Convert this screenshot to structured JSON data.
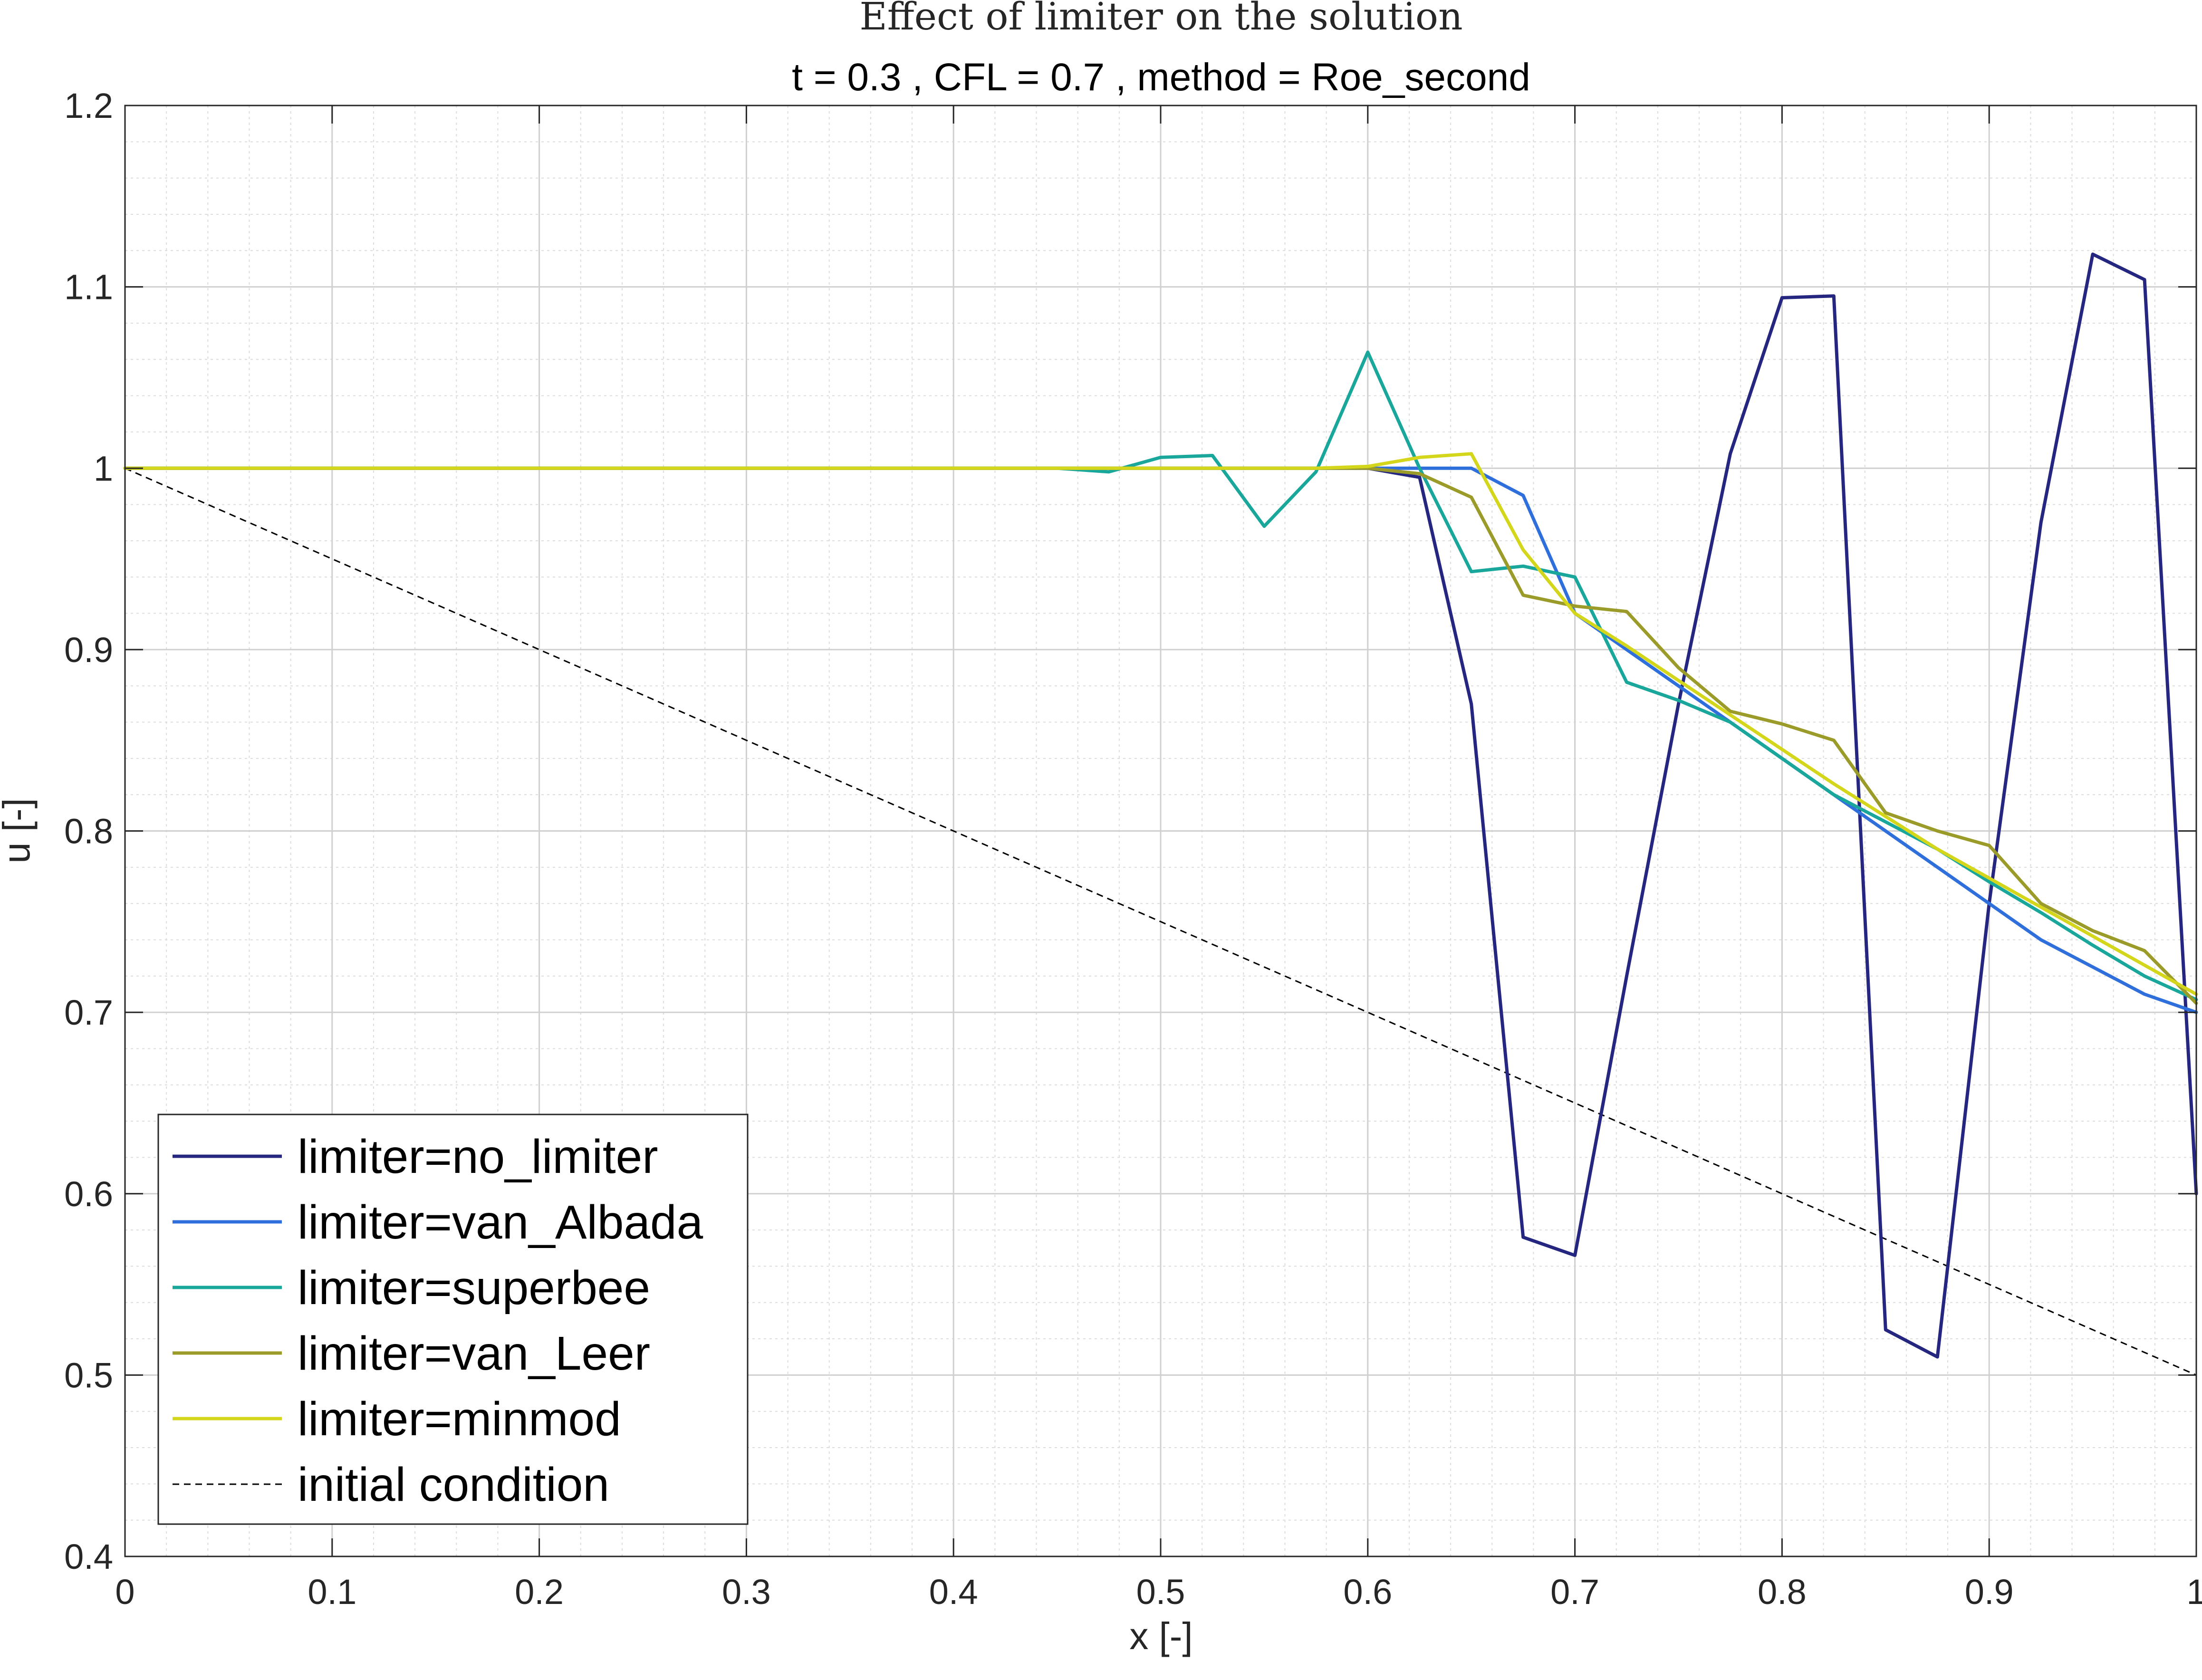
{
  "chart_data": {
    "type": "line",
    "title": "Effect of limiter on the solution",
    "subtitle": "t = 0.3 , CFL = 0.7 , method = Roe_second",
    "xlabel": "x [-]",
    "ylabel": "u [-]",
    "xlim": [
      0,
      1
    ],
    "ylim": [
      0.4,
      1.2
    ],
    "xticks": [
      "0",
      "0.1",
      "0.2",
      "0.3",
      "0.4",
      "0.5",
      "0.6",
      "0.7",
      "0.8",
      "0.9",
      "1"
    ],
    "yticks": [
      "0.4",
      "0.5",
      "0.6",
      "0.7",
      "0.8",
      "0.9",
      "1",
      "1.1",
      "1.2"
    ],
    "grid": true,
    "minor_grid": true,
    "legend_position": "bottom-left",
    "x": [
      0,
      0.025,
      0.05,
      0.075,
      0.1,
      0.125,
      0.15,
      0.175,
      0.2,
      0.225,
      0.25,
      0.275,
      0.3,
      0.325,
      0.35,
      0.375,
      0.4,
      0.425,
      0.45,
      0.475,
      0.5,
      0.525,
      0.55,
      0.575,
      0.6,
      0.625,
      0.65,
      0.675,
      0.7,
      0.725,
      0.75,
      0.775,
      0.8,
      0.825,
      0.85,
      0.875,
      0.9,
      0.925,
      0.95,
      0.975,
      1
    ],
    "series": [
      {
        "name": "limiter=no_limiter",
        "color": "#25267f",
        "dashed": false,
        "values": [
          1,
          1,
          1,
          1,
          1,
          1,
          1,
          1,
          1,
          1,
          1,
          1,
          1,
          1,
          1,
          1,
          1,
          1,
          1,
          1,
          1,
          1,
          1,
          1,
          1,
          0.995,
          0.87,
          0.576,
          0.566,
          0.72,
          0.87,
          1.008,
          1.094,
          1.095,
          0.525,
          0.51,
          0.76,
          0.97,
          1.118,
          1.104,
          0.6
        ]
      },
      {
        "name": "limiter=van_Albada",
        "color": "#2f6fdc",
        "dashed": false,
        "values": [
          1,
          1,
          1,
          1,
          1,
          1,
          1,
          1,
          1,
          1,
          1,
          1,
          1,
          1,
          1,
          1,
          1,
          1,
          1,
          1,
          1,
          1,
          1,
          1,
          1,
          1,
          1,
          0.985,
          0.92,
          0.9,
          0.88,
          0.86,
          0.84,
          0.82,
          0.8,
          0.78,
          0.76,
          0.74,
          0.725,
          0.71,
          0.7
        ]
      },
      {
        "name": "limiter=superbee",
        "color": "#1aa79b",
        "dashed": false,
        "values": [
          1,
          1,
          1,
          1,
          1,
          1,
          1,
          1,
          1,
          1,
          1,
          1,
          1,
          1,
          1,
          1,
          1,
          1,
          1,
          0.998,
          1.006,
          1.007,
          0.968,
          0.998,
          1.064,
          1,
          0.943,
          0.946,
          0.94,
          0.882,
          0.872,
          0.86,
          0.84,
          0.82,
          0.805,
          0.79,
          0.772,
          0.755,
          0.737,
          0.72,
          0.707
        ]
      },
      {
        "name": "limiter=van_Leer",
        "color": "#9b9b2a",
        "dashed": false,
        "values": [
          1,
          1,
          1,
          1,
          1,
          1,
          1,
          1,
          1,
          1,
          1,
          1,
          1,
          1,
          1,
          1,
          1,
          1,
          1,
          1,
          1,
          1,
          1,
          1,
          1,
          0.997,
          0.984,
          0.93,
          0.924,
          0.921,
          0.89,
          0.866,
          0.859,
          0.85,
          0.81,
          0.8,
          0.792,
          0.76,
          0.745,
          0.734,
          0.705
        ]
      },
      {
        "name": "limiter=minmod",
        "color": "#d4d61c",
        "dashed": false,
        "values": [
          1,
          1,
          1,
          1,
          1,
          1,
          1,
          1,
          1,
          1,
          1,
          1,
          1,
          1,
          1,
          1,
          1,
          1,
          1,
          1,
          1,
          1,
          1,
          1,
          1.001,
          1.006,
          1.008,
          0.955,
          0.92,
          0.902,
          0.883,
          0.864,
          0.845,
          0.826,
          0.808,
          0.79,
          0.774,
          0.758,
          0.742,
          0.726,
          0.71
        ]
      },
      {
        "name": "initial condition",
        "color": "#000000",
        "dashed": true,
        "values": [
          1,
          0.9875,
          0.975,
          0.9625,
          0.95,
          0.9375,
          0.925,
          0.9125,
          0.9,
          0.8875,
          0.875,
          0.8625,
          0.85,
          0.8375,
          0.825,
          0.8125,
          0.8,
          0.7875,
          0.775,
          0.7625,
          0.75,
          0.7375,
          0.725,
          0.7125,
          0.7,
          0.6875,
          0.675,
          0.6625,
          0.65,
          0.6375,
          0.625,
          0.6125,
          0.6,
          0.5875,
          0.575,
          0.5625,
          0.55,
          0.5375,
          0.525,
          0.5125,
          0.5
        ]
      }
    ]
  }
}
